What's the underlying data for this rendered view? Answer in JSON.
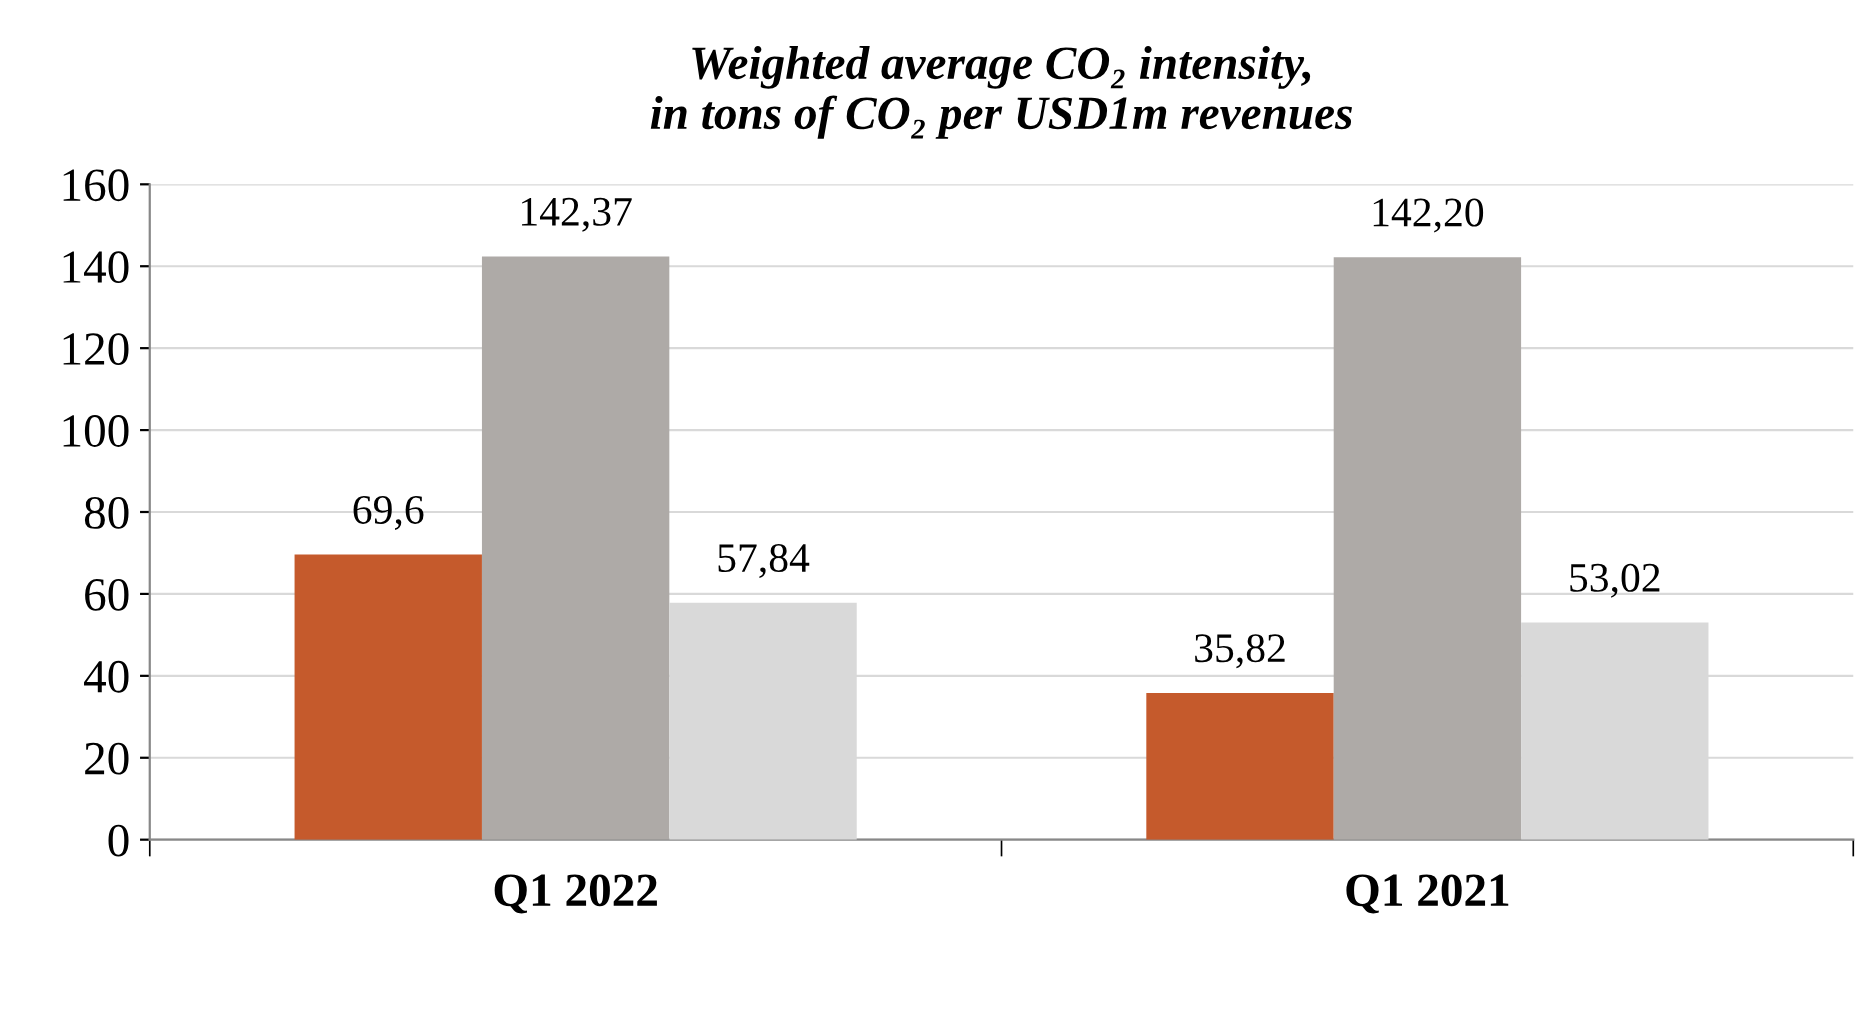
{
  "chart_data": {
    "type": "bar",
    "title": "Weighted average CO₂ intensity,\nin tons of CO₂ per USD1m revenues",
    "categories": [
      "Q1 2022",
      "Q1 2021"
    ],
    "series": [
      {
        "color": "#c55a2c",
        "values": [
          69.6,
          35.82
        ],
        "value_labels": [
          "69,6",
          "35,82"
        ]
      },
      {
        "color": "#aeaaa7",
        "values": [
          142.37,
          142.2
        ],
        "value_labels": [
          "142,37",
          "142,20"
        ]
      },
      {
        "color": "#d9d9d9",
        "values": [
          57.84,
          53.02
        ],
        "value_labels": [
          "57,84",
          "53,02"
        ]
      }
    ],
    "ylim": [
      0,
      160
    ],
    "yticks": [
      0,
      20,
      40,
      60,
      80,
      100,
      120,
      140,
      160
    ],
    "grid": "y"
  }
}
